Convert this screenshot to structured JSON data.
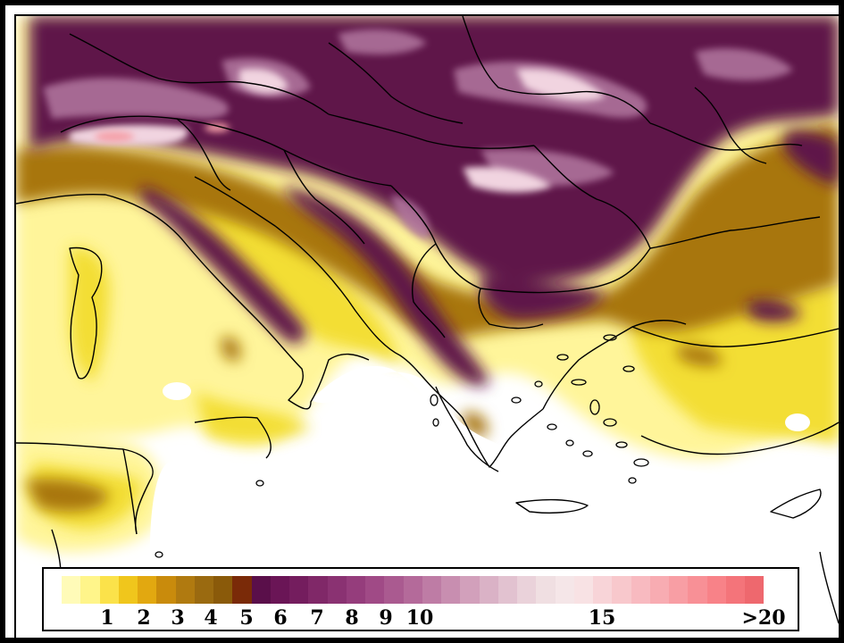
{
  "legend": {
    "ticks": [
      "1",
      "2",
      "3",
      "4",
      "5",
      "6",
      "7",
      "8",
      "9",
      "10",
      "15",
      ">20"
    ],
    "colors": [
      "#fffbb8",
      "#fff58a",
      "#fbe24a",
      "#f0c61c",
      "#e2a810",
      "#c98b0c",
      "#b07a10",
      "#9a6a10",
      "#8a5a0a",
      "#7a2a08",
      "#5a0f4a",
      "#6a1556",
      "#741d5e",
      "#802868",
      "#8a3272",
      "#953d7c",
      "#a04a86",
      "#aa5a90",
      "#b46a9a",
      "#be7ca5",
      "#c88eb0",
      "#d2a0bb",
      "#dab2c6",
      "#e2c2d0",
      "#ead2da",
      "#f0dfe2",
      "#f5e6e8",
      "#f8e2e4",
      "#f8d4d8",
      "#f8c8cc",
      "#f8bac0",
      "#f8acb2",
      "#f89ea4",
      "#f89096",
      "#f88288",
      "#f4747a",
      "#ee686e"
    ]
  },
  "map_colors": {
    "sea": "#ffffff",
    "lowland": "#fff59a",
    "yellow": "#f2dc2a",
    "brown": "#a8760c",
    "dark_purple": "#5e1248",
    "purple": "#7a2a66",
    "light_purple": "#c99ab8",
    "highlight": "#f1d4e0",
    "peak": "#f5a0a8",
    "borders": "#000000"
  }
}
